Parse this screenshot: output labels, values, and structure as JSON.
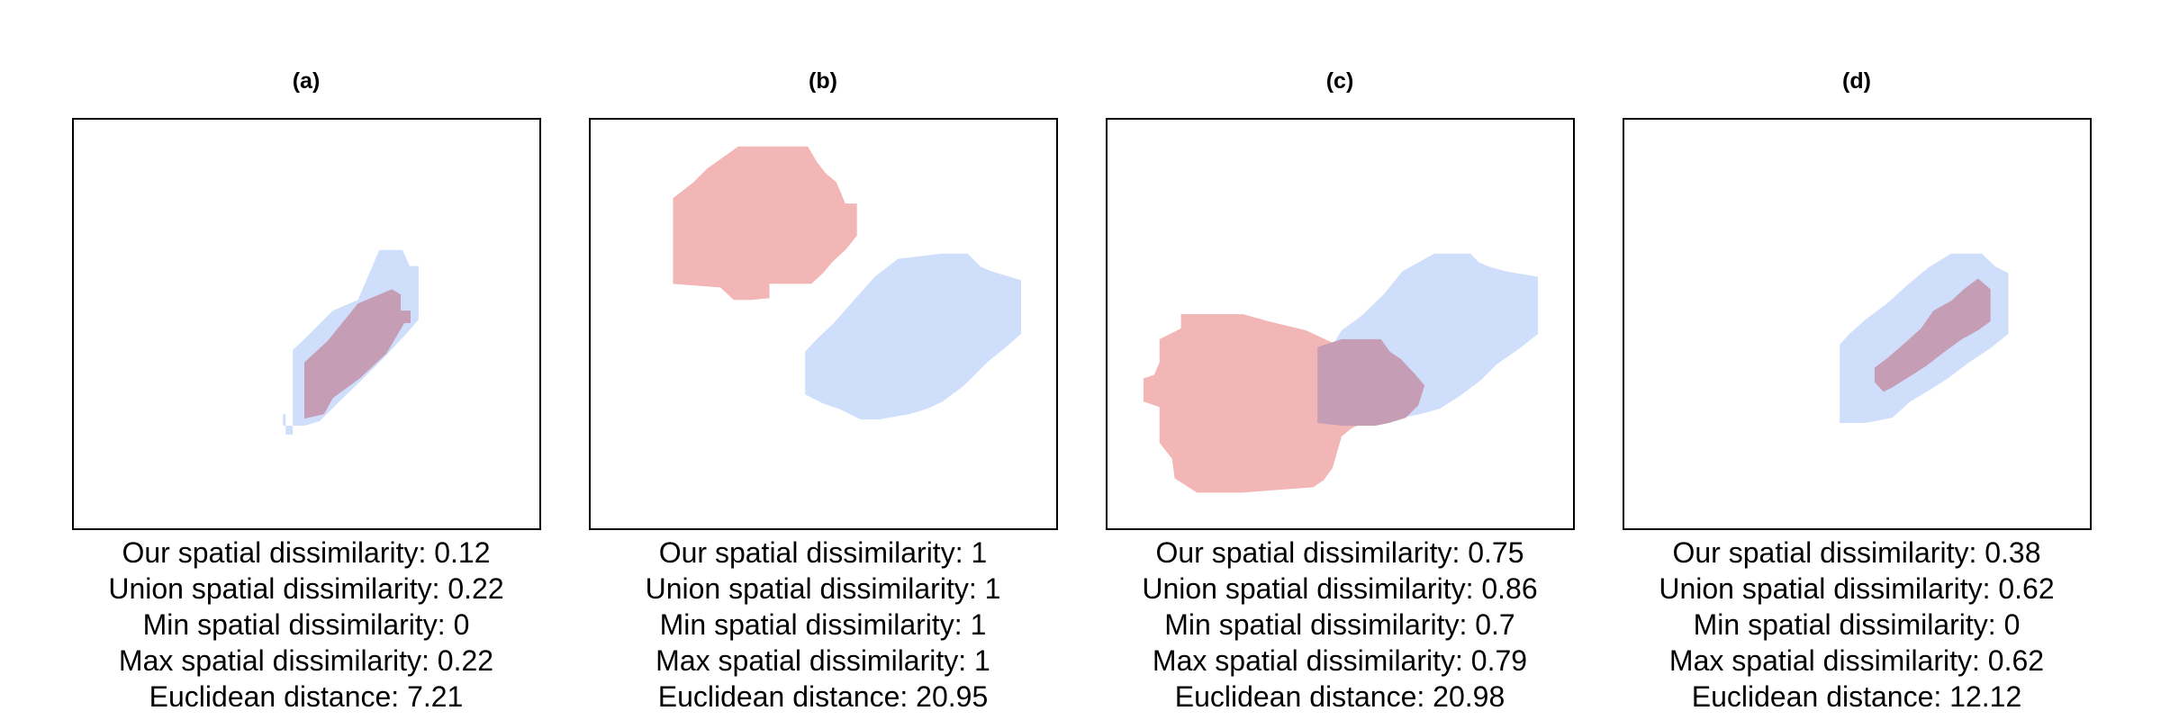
{
  "colors": {
    "blue": "#cfdffb",
    "red": "#f2b6b6",
    "overlap": "#c59db4"
  },
  "panels": [
    {
      "title": "(a)",
      "metrics": [
        "Our spatial dissimilarity: 0.12",
        "Union spatial dissimilarity: 0.22",
        "Min spatial dissimilarity: 0",
        "Max spatial dissimilarity: 0.22",
        "Euclidean distance: 7.21"
      ]
    },
    {
      "title": "(b)",
      "metrics": [
        "Our spatial dissimilarity: 1",
        "Union spatial dissimilarity: 1",
        "Min spatial dissimilarity: 1",
        "Max spatial dissimilarity: 1",
        "Euclidean distance: 20.95"
      ]
    },
    {
      "title": "(c)",
      "metrics": [
        "Our spatial dissimilarity: 0.75",
        "Union spatial dissimilarity: 0.86",
        "Min spatial dissimilarity: 0.7",
        "Max spatial dissimilarity: 0.79",
        "Euclidean distance: 20.98"
      ]
    },
    {
      "title": "(d)",
      "metrics": [
        "Our spatial dissimilarity: 0.38",
        "Union spatial dissimilarity: 0.62",
        "Min spatial dissimilarity: 0",
        "Max spatial dissimilarity: 0.62",
        "Euclidean distance: 12.12"
      ]
    }
  ]
}
